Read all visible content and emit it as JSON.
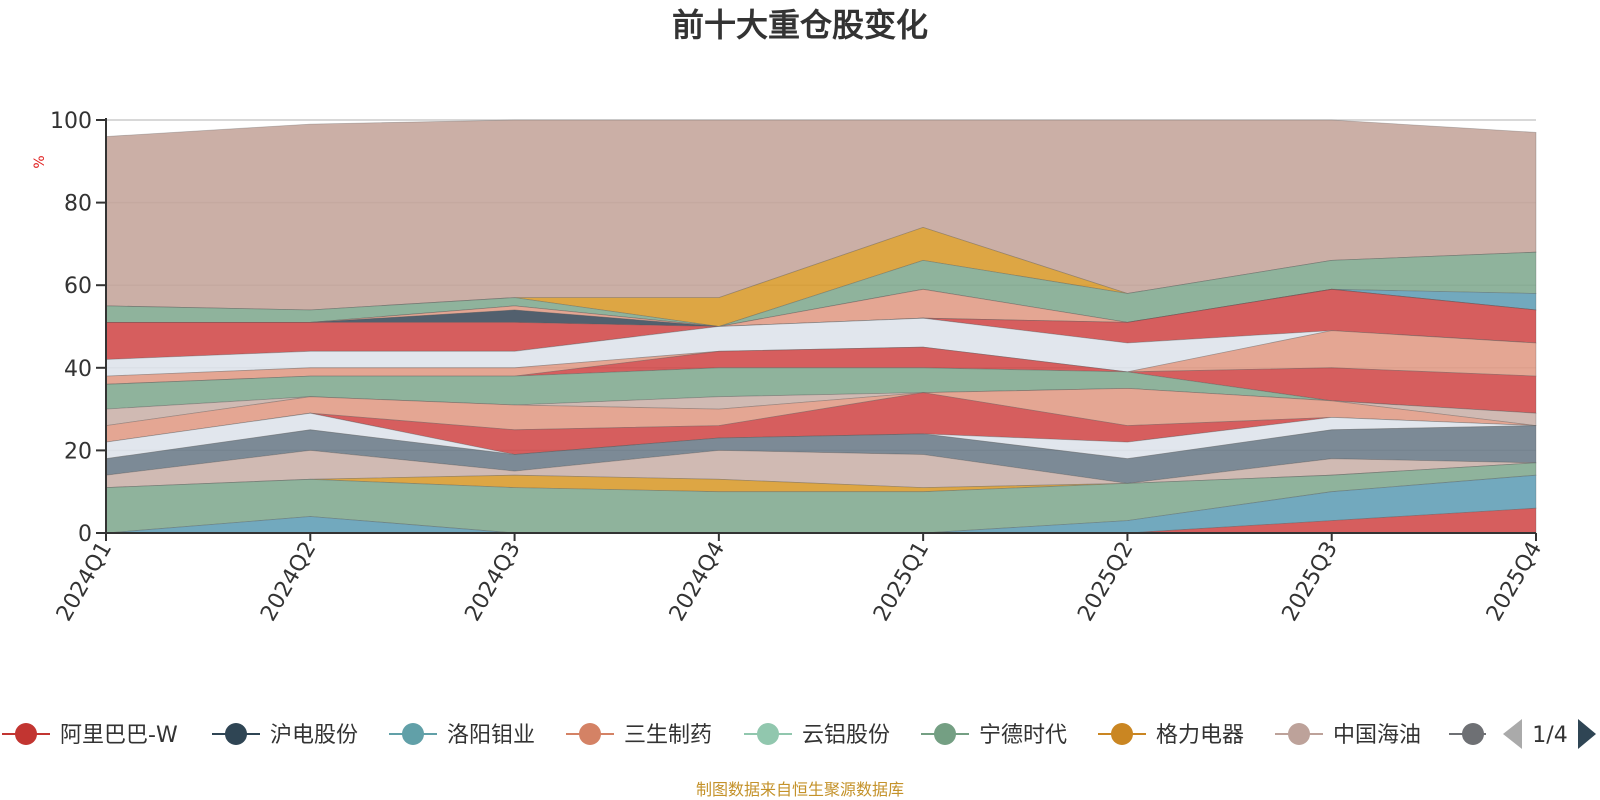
{
  "chart_data": {
    "type": "area",
    "stacked": false,
    "title": "前十大重仓股变化",
    "ylabel": "%",
    "ylim": [
      0,
      100
    ],
    "yticks": [
      0,
      20,
      40,
      60,
      80,
      100
    ],
    "grid": true,
    "x": [
      "2024Q1",
      "2024Q2",
      "2024Q3",
      "2024Q4",
      "2025Q1",
      "2025Q2",
      "2025Q3",
      "2025Q4"
    ],
    "bands": [
      {
        "color": "#c4a49a",
        "upper": [
          96,
          99,
          100,
          100,
          100,
          100,
          100,
          97
        ],
        "lower": [
          55,
          54,
          57,
          57,
          74,
          58,
          66,
          68
        ]
      },
      {
        "color": "#d89a2a",
        "upper": [
          55,
          54,
          57,
          57,
          74,
          58,
          66,
          68
        ],
        "lower": [
          55,
          54,
          57,
          50,
          66,
          58,
          66,
          68
        ]
      },
      {
        "color": "#7fa88e",
        "upper": [
          55,
          54,
          57,
          50,
          66,
          58,
          66,
          68
        ],
        "lower": [
          51,
          51,
          55,
          50,
          59,
          51,
          59,
          58
        ]
      },
      {
        "color": "#5f9db5",
        "upper": [
          51,
          51,
          55,
          50,
          59,
          51,
          59,
          58
        ],
        "lower": [
          51,
          51,
          55,
          50,
          59,
          51,
          59,
          54
        ]
      },
      {
        "color": "#e09a84",
        "upper": [
          51,
          51,
          55,
          50,
          59,
          51,
          59,
          54
        ],
        "lower": [
          51,
          51,
          54,
          50,
          52,
          51,
          59,
          54
        ]
      },
      {
        "color": "#3a4a5a",
        "upper": [
          51,
          51,
          54,
          50,
          52,
          51,
          59,
          54
        ],
        "lower": [
          51,
          51,
          51,
          50,
          52,
          51,
          59,
          54
        ]
      },
      {
        "color": "#d04848",
        "upper": [
          51,
          51,
          51,
          50,
          52,
          51,
          59,
          54
        ],
        "lower": [
          42,
          44,
          44,
          50,
          52,
          46,
          49,
          46
        ]
      },
      {
        "color": "#dde2ea",
        "upper": [
          42,
          44,
          44,
          50,
          52,
          46,
          49,
          46
        ],
        "lower": [
          38,
          40,
          40,
          44,
          45,
          39,
          49,
          46
        ]
      },
      {
        "color": "#e09a84",
        "upper": [
          38,
          40,
          40,
          44,
          45,
          39,
          49,
          46
        ],
        "lower": [
          36,
          38,
          38,
          44,
          45,
          39,
          40,
          38
        ]
      },
      {
        "color": "#d04848",
        "upper": [
          36,
          38,
          38,
          44,
          45,
          39,
          40,
          38
        ],
        "lower": [
          36,
          38,
          38,
          40,
          40,
          39,
          32,
          29
        ]
      },
      {
        "color": "#7fa88e",
        "upper": [
          36,
          38,
          38,
          40,
          40,
          39,
          32,
          29
        ],
        "lower": [
          30,
          33,
          31,
          33,
          34,
          35,
          32,
          29
        ]
      },
      {
        "color": "#c9b0a8",
        "upper": [
          30,
          33,
          31,
          33,
          34,
          35,
          32,
          29
        ],
        "lower": [
          26,
          33,
          31,
          30,
          34,
          35,
          32,
          26
        ]
      },
      {
        "color": "#e09a84",
        "upper": [
          26,
          33,
          31,
          30,
          34,
          35,
          32,
          26
        ],
        "lower": [
          22,
          29,
          25,
          26,
          34,
          26,
          28,
          26
        ]
      },
      {
        "color": "#d04848",
        "upper": [
          22,
          29,
          25,
          26,
          34,
          26,
          28,
          26
        ],
        "lower": [
          22,
          29,
          19,
          23,
          24,
          22,
          28,
          26
        ]
      },
      {
        "color": "#dde2ea",
        "upper": [
          22,
          29,
          19,
          23,
          24,
          22,
          28,
          26
        ],
        "lower": [
          18,
          25,
          19,
          23,
          24,
          18,
          25,
          26
        ]
      },
      {
        "color": "#6a7a88",
        "upper": [
          18,
          25,
          19,
          23,
          24,
          18,
          25,
          26
        ],
        "lower": [
          14,
          20,
          15,
          20,
          19,
          12,
          18,
          17
        ]
      },
      {
        "color": "#c9b0a8",
        "upper": [
          14,
          20,
          15,
          20,
          19,
          12,
          18,
          17
        ],
        "lower": [
          11,
          13,
          14,
          13,
          11,
          12,
          14,
          17
        ]
      },
      {
        "color": "#d89a2a",
        "upper": [
          11,
          13,
          14,
          13,
          11,
          12,
          14,
          17
        ],
        "lower": [
          11,
          13,
          11,
          10,
          10,
          12,
          14,
          17
        ]
      },
      {
        "color": "#7fa88e",
        "upper": [
          11,
          13,
          11,
          10,
          10,
          12,
          14,
          17
        ],
        "lower": [
          0,
          4,
          0,
          0,
          0,
          3,
          10,
          14
        ]
      },
      {
        "color": "#5f9db5",
        "upper": [
          0,
          4,
          0,
          0,
          0,
          3,
          10,
          14
        ],
        "lower": [
          0,
          0,
          0,
          0,
          0,
          0,
          3,
          6
        ]
      },
      {
        "color": "#d04848",
        "upper": [
          0,
          0,
          0,
          0,
          0,
          0,
          3,
          6
        ],
        "lower": [
          0,
          0,
          0,
          0,
          0,
          0,
          0,
          0
        ]
      }
    ]
  },
  "legend": {
    "items": [
      {
        "name": "阿里巴巴-W",
        "color": "#c23531"
      },
      {
        "name": "沪电股份",
        "color": "#2f4554"
      },
      {
        "name": "洛阳钼业",
        "color": "#61a0a8"
      },
      {
        "name": "三生制药",
        "color": "#d48265"
      },
      {
        "name": "云铝股份",
        "color": "#91c7ae"
      },
      {
        "name": "宁德时代",
        "color": "#749f83"
      },
      {
        "name": "格力电器",
        "color": "#ca8622"
      },
      {
        "name": "中国海油",
        "color": "#bda29a"
      },
      {
        "name": "",
        "color": "#6e7074"
      }
    ],
    "page": "1/4"
  },
  "source": "制图数据来自恒生聚源数据库"
}
